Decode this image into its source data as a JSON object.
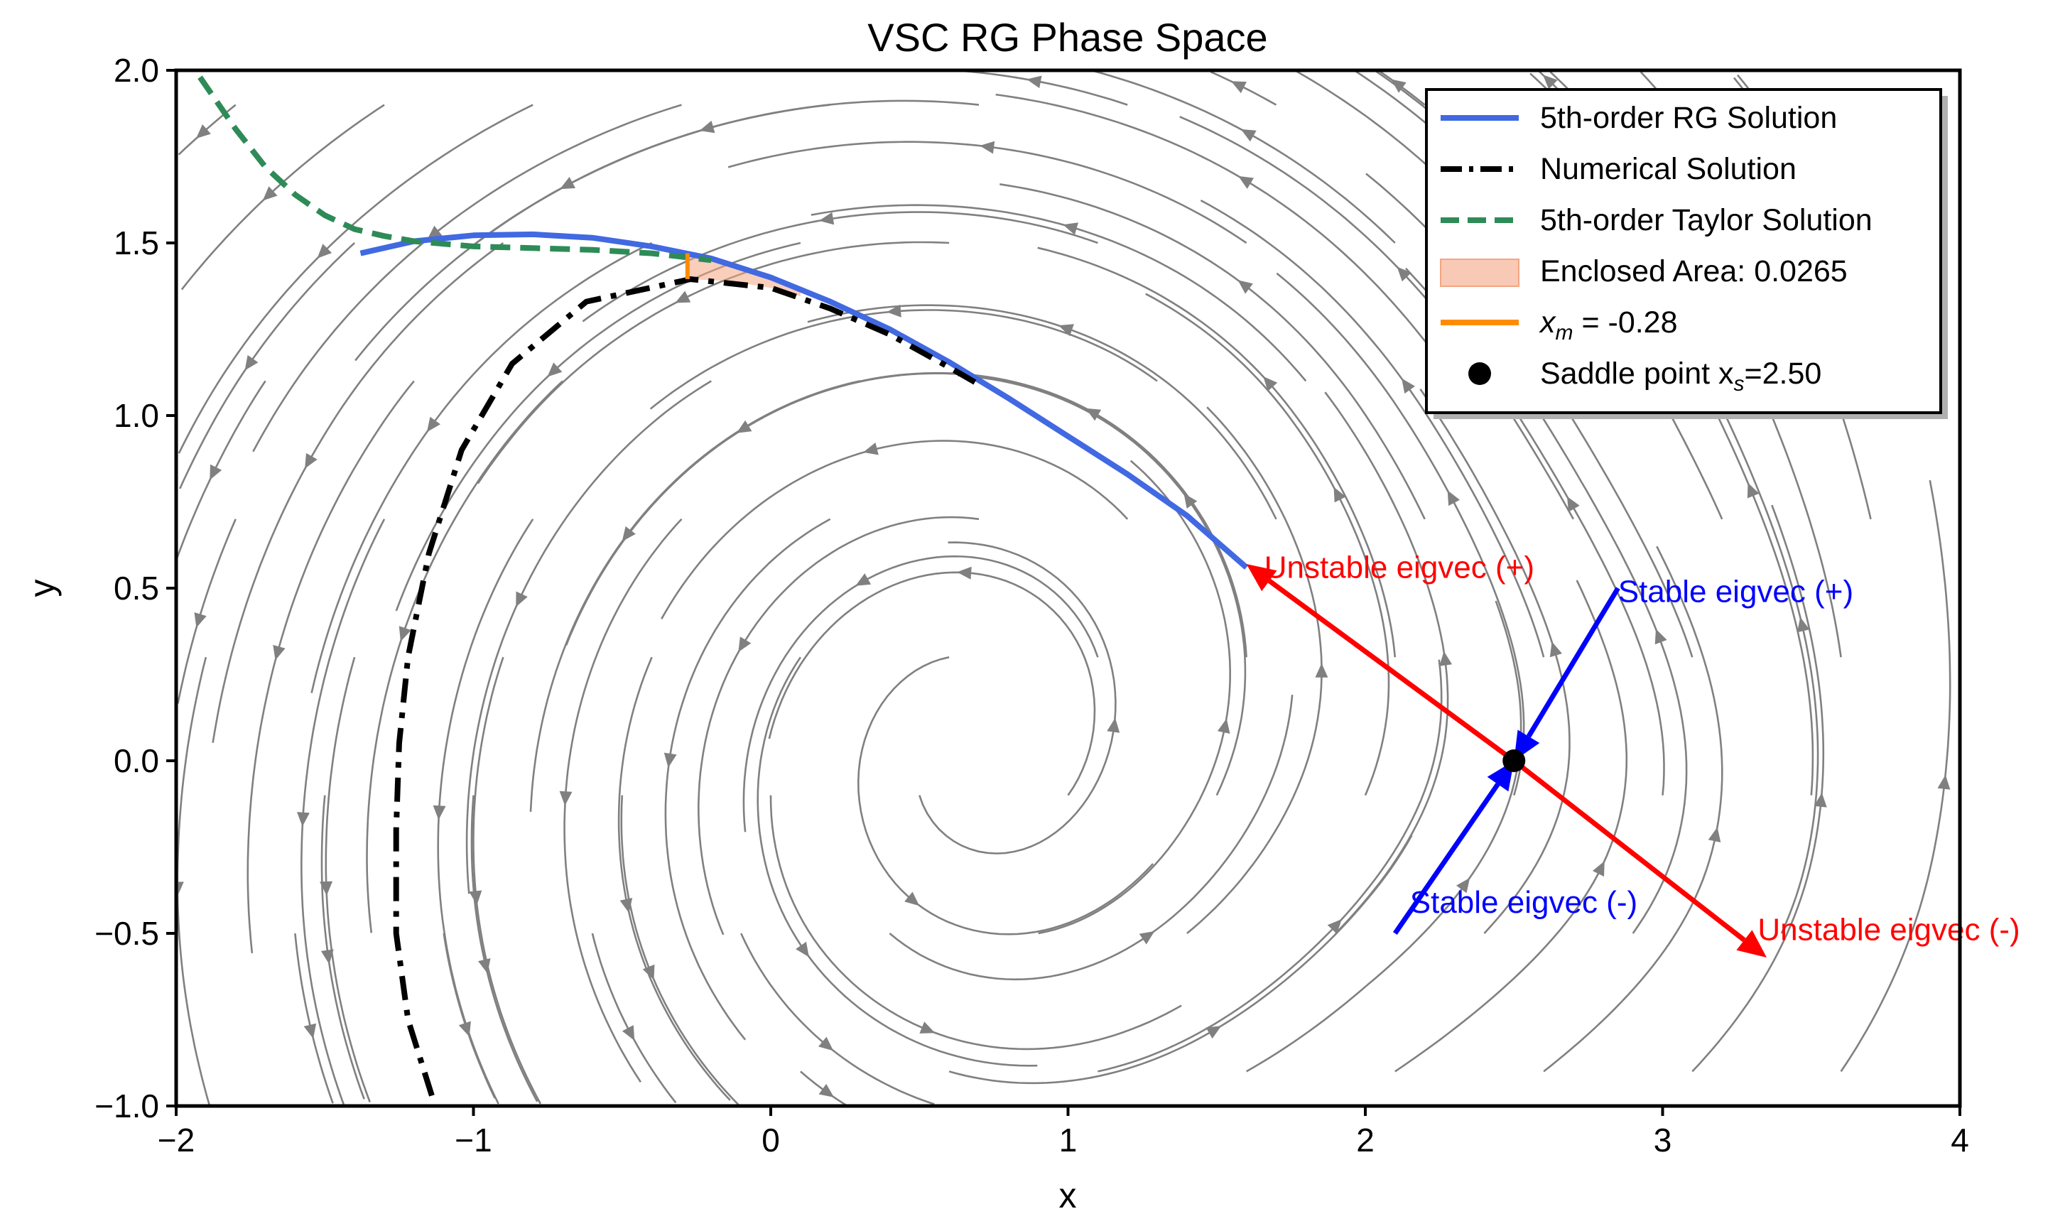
{
  "chart_data": {
    "type": "line",
    "title": "VSC RG Phase Space",
    "xlabel": "x",
    "ylabel": "y",
    "xlim": [
      -2,
      4
    ],
    "ylim": [
      -1,
      2
    ],
    "grid": false,
    "legend_position": "top-right",
    "x_ticks": [
      -2,
      -1,
      0,
      1,
      2,
      3,
      4
    ],
    "x_tick_labels": [
      "−2",
      "−1",
      "0",
      "1",
      "2",
      "3",
      "4"
    ],
    "y_ticks": [
      -1,
      -0.5,
      0,
      0.5,
      1,
      1.5,
      2
    ],
    "y_tick_labels": [
      "−1.0",
      "−0.5",
      "0.0",
      "0.5",
      "1.0",
      "1.5",
      "2.0"
    ],
    "series": [
      {
        "name": "5th-order RG Solution",
        "color": "#4169e1",
        "style": "solid",
        "points": [
          [
            -1.38,
            1.47
          ],
          [
            -1.2,
            1.505
          ],
          [
            -1.0,
            1.522
          ],
          [
            -0.8,
            1.525
          ],
          [
            -0.6,
            1.515
          ],
          [
            -0.4,
            1.49
          ],
          [
            -0.2,
            1.455
          ],
          [
            0.0,
            1.4
          ],
          [
            0.2,
            1.33
          ],
          [
            0.4,
            1.25
          ],
          [
            0.6,
            1.155
          ],
          [
            0.8,
            1.05
          ],
          [
            1.0,
            0.94
          ],
          [
            1.2,
            0.83
          ],
          [
            1.4,
            0.71
          ],
          [
            1.6,
            0.56
          ]
        ]
      },
      {
        "name": "Numerical Solution",
        "color": "#000000",
        "style": "dashdot",
        "points": [
          [
            -1.14,
            -0.97
          ],
          [
            -1.22,
            -0.75
          ],
          [
            -1.26,
            -0.5
          ],
          [
            -1.26,
            -0.2
          ],
          [
            -1.25,
            0.05
          ],
          [
            -1.22,
            0.3
          ],
          [
            -1.15,
            0.6
          ],
          [
            -1.04,
            0.9
          ],
          [
            -0.87,
            1.15
          ],
          [
            -0.62,
            1.33
          ],
          [
            -0.27,
            1.395
          ],
          [
            0.0,
            1.37
          ],
          [
            0.2,
            1.31
          ],
          [
            0.4,
            1.235
          ],
          [
            0.6,
            1.14
          ],
          [
            0.7,
            1.09
          ]
        ]
      },
      {
        "name": "5th-order Taylor Solution",
        "color": "#2e8b57",
        "style": "dashed",
        "points": [
          [
            -1.92,
            1.98
          ],
          [
            -1.8,
            1.83
          ],
          [
            -1.7,
            1.72
          ],
          [
            -1.6,
            1.64
          ],
          [
            -1.5,
            1.58
          ],
          [
            -1.4,
            1.54
          ],
          [
            -1.3,
            1.52
          ],
          [
            -1.2,
            1.505
          ],
          [
            -1.0,
            1.49
          ],
          [
            -0.8,
            1.485
          ],
          [
            -0.6,
            1.48
          ],
          [
            -0.4,
            1.47
          ],
          [
            -0.2,
            1.45
          ]
        ]
      }
    ],
    "fill_area": {
      "name": "Enclosed Area: 0.0265",
      "color": "#f4a582",
      "upper": [
        [
          -0.28,
          1.463
        ],
        [
          -0.2,
          1.455
        ],
        [
          0.0,
          1.4
        ],
        [
          0.1,
          1.365
        ]
      ],
      "lower": [
        [
          0.1,
          1.345
        ],
        [
          0.0,
          1.37
        ],
        [
          -0.14,
          1.39
        ],
        [
          -0.28,
          1.395
        ]
      ]
    },
    "vertical_marker": {
      "name": "x_m = -0.28",
      "label_prefix": "x",
      "label_sub": "m",
      "label_suffix": " = -0.28",
      "color": "#ff8c00",
      "x": -0.28,
      "y_range": [
        1.395,
        1.47
      ]
    },
    "saddle_point": {
      "name": "Saddle point x_s=2.50",
      "label_prefix": "Saddle point x",
      "label_sub": "s",
      "label_suffix": "=2.50",
      "x": 2.5,
      "y": 0.0,
      "color": "#000000"
    },
    "eigenvectors": [
      {
        "label": "Unstable eigvec (+)",
        "color": "#ff0000",
        "from": [
          2.5,
          0.0
        ],
        "to": [
          1.6,
          0.57
        ],
        "arrow_at_end": true,
        "label_at": [
          1.66,
          0.53
        ]
      },
      {
        "label": "Unstable eigvec (-)",
        "color": "#ff0000",
        "from": [
          2.5,
          0.0
        ],
        "to": [
          3.35,
          -0.57
        ],
        "arrow_at_end": true,
        "label_at": [
          3.32,
          -0.52
        ]
      },
      {
        "label": "Stable eigvec (+)",
        "color": "#0000ff",
        "from": [
          2.85,
          0.5
        ],
        "to": [
          2.5,
          0.0
        ],
        "arrow_at_end": true,
        "label_at": [
          2.85,
          0.46
        ]
      },
      {
        "label": "Stable eigvec (-)",
        "color": "#0000ff",
        "from": [
          2.1,
          -0.5
        ],
        "to": [
          2.5,
          0.0
        ],
        "arrow_at_end": true,
        "label_at": [
          2.15,
          -0.44
        ]
      }
    ],
    "streamplot": {
      "color": "#808080",
      "focus": [
        0.75,
        0.0
      ],
      "saddle": [
        2.5,
        0.0
      ]
    }
  }
}
